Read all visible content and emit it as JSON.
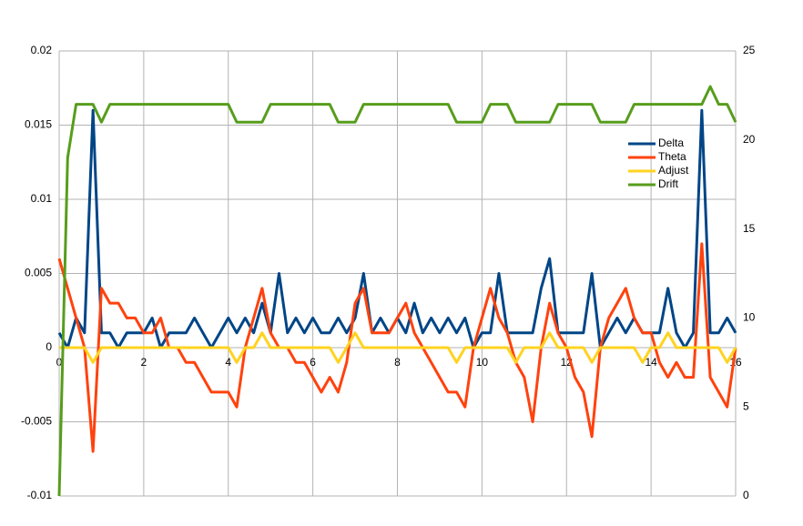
{
  "chart_data": {
    "type": "line",
    "x": [
      0,
      0.2,
      0.4,
      0.6,
      0.8,
      1,
      1.2,
      1.4,
      1.6,
      1.8,
      2,
      2.2,
      2.4,
      2.6,
      2.8,
      3,
      3.2,
      3.4,
      3.6,
      3.8,
      4,
      4.2,
      4.4,
      4.6,
      4.8,
      5,
      5.2,
      5.4,
      5.6,
      5.8,
      6,
      6.2,
      6.4,
      6.6,
      6.8,
      7,
      7.2,
      7.4,
      7.6,
      7.8,
      8,
      8.2,
      8.4,
      8.6,
      8.8,
      9,
      9.2,
      9.4,
      9.6,
      9.8,
      10,
      10.2,
      10.4,
      10.6,
      10.8,
      11,
      11.2,
      11.4,
      11.6,
      11.8,
      12,
      12.2,
      12.4,
      12.6,
      12.8,
      13,
      13.2,
      13.4,
      13.6,
      13.8,
      14,
      14.2,
      14.4,
      14.6,
      14.8,
      15,
      15.2,
      15.4,
      15.6,
      15.8,
      16
    ],
    "series": [
      {
        "name": "Delta",
        "color": "#004586",
        "values": [
          0.001,
          0,
          0.002,
          0.001,
          0.016,
          0.001,
          0.001,
          0,
          0.001,
          0.001,
          0.001,
          0.002,
          0,
          0.001,
          0.001,
          0.001,
          0.002,
          0.001,
          0,
          0.001,
          0.002,
          0.001,
          0.002,
          0.001,
          0.003,
          0.001,
          0.005,
          0.001,
          0.002,
          0.001,
          0.002,
          0.001,
          0.001,
          0.002,
          0.001,
          0.002,
          0.005,
          0.001,
          0.002,
          0.001,
          0.002,
          0.001,
          0.003,
          0.001,
          0.002,
          0.001,
          0.002,
          0.001,
          0.002,
          0,
          0.001,
          0.001,
          0.005,
          0.001,
          0.001,
          0.001,
          0.001,
          0.004,
          0.006,
          0.001,
          0.001,
          0.001,
          0.001,
          0.005,
          0,
          0.001,
          0.002,
          0.001,
          0.002,
          0.001,
          0.001,
          0.001,
          0.004,
          0.001,
          0,
          0.001,
          0.016,
          0.001,
          0.001,
          0.002,
          0.001
        ]
      },
      {
        "name": "Theta",
        "color": "#ff420e",
        "values": [
          0.006,
          0.004,
          0.002,
          0,
          -0.007,
          0.004,
          0.003,
          0.003,
          0.002,
          0.002,
          0.001,
          0.001,
          0.002,
          0,
          0,
          -0.001,
          -0.001,
          -0.002,
          -0.003,
          -0.003,
          -0.003,
          -0.004,
          0,
          0.002,
          0.004,
          0.001,
          0,
          0,
          -0.001,
          -0.001,
          -0.002,
          -0.003,
          -0.002,
          -0.003,
          -0.001,
          0.003,
          0.004,
          0.001,
          0.001,
          0.001,
          0.002,
          0.003,
          0.001,
          0,
          -0.001,
          -0.002,
          -0.003,
          -0.003,
          -0.004,
          0,
          0.002,
          0.004,
          0.002,
          0.001,
          -0.001,
          -0.002,
          -0.005,
          0,
          0.003,
          0.001,
          0,
          -0.002,
          -0.003,
          -0.006,
          0,
          0.002,
          0.003,
          0.004,
          0.002,
          0.001,
          0.001,
          -0.001,
          -0.002,
          -0.001,
          -0.002,
          -0.002,
          0.007,
          -0.002,
          -0.003,
          -0.004,
          0
        ]
      },
      {
        "name": "Adjust",
        "color": "#ffd320",
        "values": [
          0,
          0,
          0,
          0,
          -0.001,
          0,
          0,
          0,
          0,
          0,
          0,
          0,
          0,
          0,
          0,
          0,
          0,
          0,
          0,
          0,
          0,
          -0.001,
          0,
          0,
          0.001,
          0,
          0,
          0,
          0,
          0,
          0,
          0,
          0,
          -0.001,
          0,
          0.001,
          0,
          0,
          0,
          0,
          0,
          0,
          0,
          0,
          0,
          0,
          0,
          -0.001,
          0,
          0,
          0,
          0,
          0,
          0,
          -0.001,
          0,
          0,
          0,
          0.001,
          0,
          0,
          0,
          0,
          -0.001,
          0,
          0,
          0,
          0,
          0,
          -0.001,
          0,
          0,
          0.001,
          0,
          0,
          0,
          0,
          0,
          0,
          -0.001,
          0
        ]
      },
      {
        "name": "Drift",
        "color": "#579d1c",
        "axis": "y2",
        "values": [
          0,
          19,
          22,
          22,
          22,
          21,
          22,
          22,
          22,
          22,
          22,
          22,
          22,
          22,
          22,
          22,
          22,
          22,
          22,
          22,
          22,
          21,
          21,
          21,
          21,
          22,
          22,
          22,
          22,
          22,
          22,
          22,
          22,
          21,
          21,
          21,
          22,
          22,
          22,
          22,
          22,
          22,
          22,
          22,
          22,
          22,
          22,
          21,
          21,
          21,
          21,
          22,
          22,
          22,
          21,
          21,
          21,
          21,
          21,
          22,
          22,
          22,
          22,
          22,
          21,
          21,
          21,
          21,
          22,
          22,
          22,
          22,
          22,
          22,
          22,
          22,
          22,
          23,
          22,
          22,
          21
        ]
      }
    ],
    "xlim": [
      0,
      16
    ],
    "xticks": [
      0,
      2,
      4,
      6,
      8,
      10,
      12,
      14,
      16
    ],
    "ylim": [
      -0.01,
      0.02
    ],
    "yticks": [
      -0.01,
      -0.005,
      0,
      0.005,
      0.01,
      0.015,
      0.02
    ],
    "y2lim": [
      0,
      25
    ],
    "y2ticks": [
      0,
      5,
      10,
      15,
      20,
      25
    ],
    "grid": true,
    "legend": "right"
  }
}
